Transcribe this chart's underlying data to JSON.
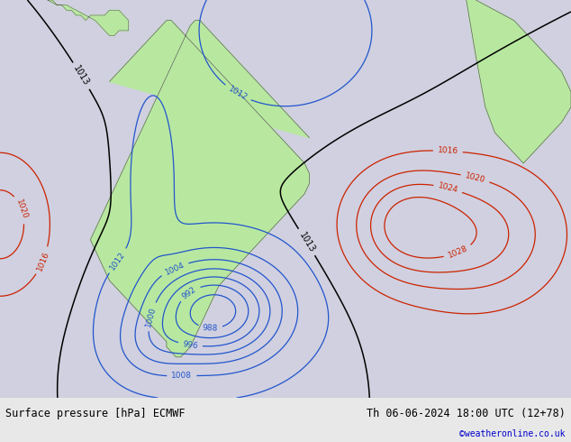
{
  "title_left": "Surface pressure [hPa] ECMWF",
  "title_right": "Th 06-06-2024 18:00 UTC (12+78)",
  "copyright": "©weatheronline.co.uk",
  "bg_color": "#d0d0e0",
  "land_color": "#b8e8a0",
  "fig_width": 6.34,
  "fig_height": 4.9,
  "dpi": 100,
  "bottom_bar_height": 0.1,
  "lon_min": -100,
  "lon_max": 20,
  "lat_min": -62,
  "lat_max": 16
}
